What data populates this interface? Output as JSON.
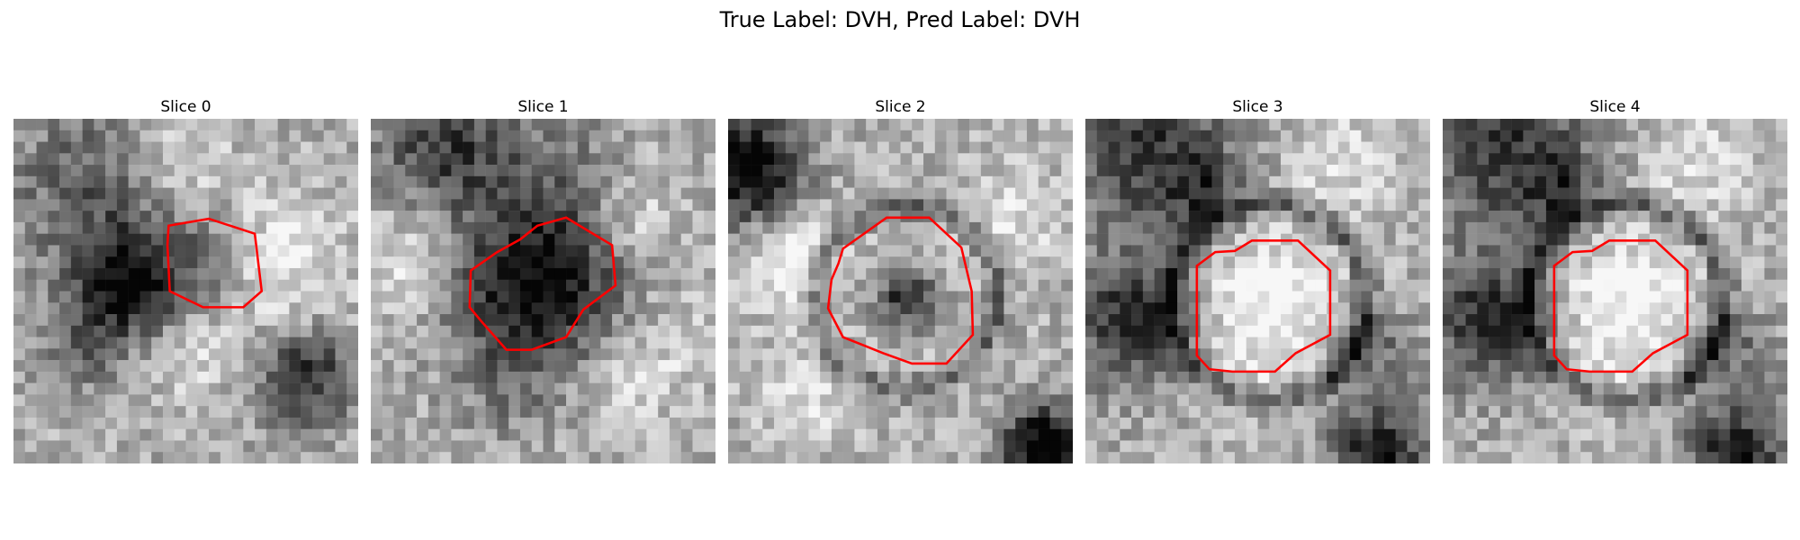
{
  "figure": {
    "suptitle": "True Label: DVH, Pred Label: DVH",
    "contour_color": "#ff0000"
  },
  "slices": [
    {
      "title": "Slice 0"
    },
    {
      "title": "Slice 1"
    },
    {
      "title": "Slice 2"
    },
    {
      "title": "Slice 3"
    },
    {
      "title": "Slice 4"
    }
  ]
}
